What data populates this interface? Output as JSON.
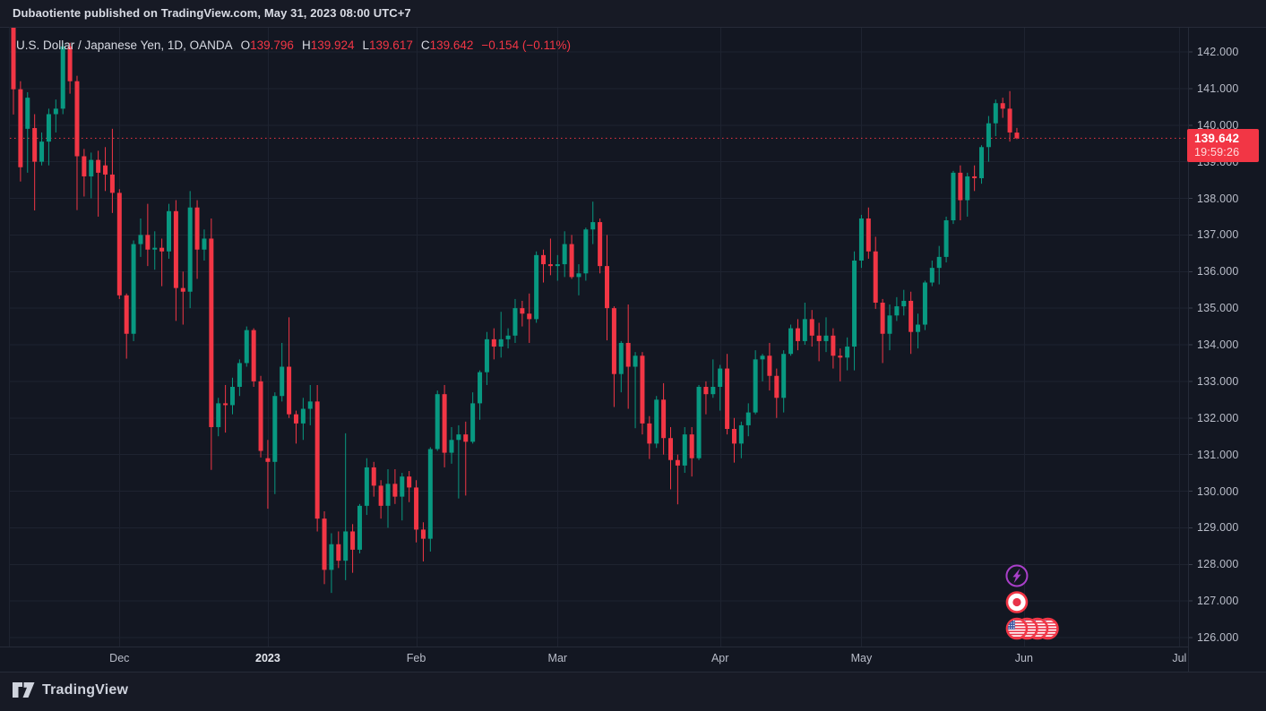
{
  "header": {
    "publish_text": "Dubaotiente published on TradingView.com, May 31, 2023 08:00 UTC+7"
  },
  "legend": {
    "symbol_title": "U.S. Dollar / Japanese Yen, 1D, OANDA",
    "open_key": "O",
    "open": "139.796",
    "high_key": "H",
    "high": "139.924",
    "low_key": "L",
    "low": "139.617",
    "close_key": "C",
    "close": "139.642",
    "change": "−0.154 (−0.11%)"
  },
  "price_scale": {
    "labels": [
      {
        "value": 142,
        "text": "142.000"
      },
      {
        "value": 141,
        "text": "141.000"
      },
      {
        "value": 140,
        "text": "140.000"
      },
      {
        "value": 139,
        "text": "139.000"
      },
      {
        "value": 138,
        "text": "138.000"
      },
      {
        "value": 137,
        "text": "137.000"
      },
      {
        "value": 136,
        "text": "136.000"
      },
      {
        "value": 135,
        "text": "135.000"
      },
      {
        "value": 134,
        "text": "134.000"
      },
      {
        "value": 133,
        "text": "133.000"
      },
      {
        "value": 132,
        "text": "132.000"
      },
      {
        "value": 131,
        "text": "131.000"
      },
      {
        "value": 130,
        "text": "130.000"
      },
      {
        "value": 129,
        "text": "129.000"
      },
      {
        "value": 128,
        "text": "128.000"
      },
      {
        "value": 127,
        "text": "127.000"
      },
      {
        "value": 126,
        "text": "126.000"
      }
    ],
    "last_price": {
      "value": 139.642,
      "text": "139.642",
      "countdown": "19:59:26"
    }
  },
  "time_scale": {
    "ticks": [
      {
        "label": "Dec",
        "index": 15,
        "year": false
      },
      {
        "label": "2023",
        "index": 36,
        "year": true
      },
      {
        "label": "Feb",
        "index": 57,
        "year": false
      },
      {
        "label": "Mar",
        "index": 77,
        "year": false
      },
      {
        "label": "Apr",
        "index": 100,
        "year": false
      },
      {
        "label": "May",
        "index": 120,
        "year": false
      },
      {
        "label": "Jun",
        "index": 143,
        "year": false
      },
      {
        "label": "Jul",
        "index": 165,
        "year": false
      }
    ]
  },
  "footer": {
    "brand": "TradingView"
  },
  "event_markers": {
    "column_index": 142,
    "items": [
      {
        "kind": "lightning",
        "color": "#a93fc9",
        "y": 643
      },
      {
        "kind": "flag-japan",
        "color": "#f23645",
        "y": 672.5
      },
      {
        "kind": "flag-us-group",
        "color": "#f23645",
        "y": 702,
        "count": 4
      }
    ]
  },
  "colors": {
    "up": "#089981",
    "down": "#f23645",
    "grid": "#1e2330",
    "border": "#262b38",
    "pane_bg": "#131722",
    "outer_bg": "#171a25",
    "accent": "#f23645",
    "flag_blue": "#3a55a0",
    "flag_red": "#e8344a"
  },
  "chart_data": {
    "type": "candlestick",
    "title": "U.S. Dollar / Japanese Yen",
    "symbol": "USD/JPY",
    "timeframe": "1D",
    "exchange": "OANDA",
    "ylim": [
      125.8,
      142.7
    ],
    "grid": true,
    "columns": [
      "date",
      "open",
      "high",
      "low",
      "close"
    ],
    "rows": [
      [
        "2022-11-10",
        146.23,
        146.59,
        140.29,
        140.98
      ],
      [
        "2022-11-11",
        140.98,
        141.2,
        138.46,
        138.85
      ],
      [
        "2022-11-14",
        139.9,
        140.9,
        138.7,
        140.75
      ],
      [
        "2022-11-15",
        139.92,
        140.3,
        137.67,
        139.0
      ],
      [
        "2022-11-16",
        139.0,
        139.8,
        138.9,
        139.55
      ],
      [
        "2022-11-17",
        139.55,
        140.45,
        138.9,
        140.3
      ],
      [
        "2022-11-18",
        140.3,
        140.7,
        139.8,
        140.45
      ],
      [
        "2022-11-21",
        140.45,
        142.25,
        140.3,
        142.15
      ],
      [
        "2022-11-22",
        142.15,
        142.25,
        140.86,
        141.2
      ],
      [
        "2022-11-23",
        141.2,
        141.35,
        137.68,
        139.15
      ],
      [
        "2022-11-24",
        139.15,
        139.35,
        138.05,
        138.6
      ],
      [
        "2022-11-25",
        138.6,
        139.25,
        138.0,
        139.05
      ],
      [
        "2022-11-28",
        139.05,
        139.3,
        137.5,
        138.7
      ],
      [
        "2022-11-29",
        138.9,
        139.4,
        138.2,
        138.65
      ],
      [
        "2022-11-30",
        138.65,
        139.9,
        137.6,
        138.15
      ],
      [
        "2022-12-01",
        138.15,
        138.25,
        135.25,
        135.35
      ],
      [
        "2022-12-02",
        135.35,
        135.4,
        133.62,
        134.3
      ],
      [
        "2022-12-05",
        134.3,
        136.85,
        134.1,
        136.75
      ],
      [
        "2022-12-06",
        136.75,
        137.45,
        136.4,
        137.0
      ],
      [
        "2022-12-07",
        137.0,
        137.85,
        136.15,
        136.6
      ],
      [
        "2022-12-08",
        136.6,
        137.1,
        136.05,
        136.65
      ],
      [
        "2022-12-09",
        136.65,
        136.9,
        135.6,
        136.55
      ],
      [
        "2022-12-12",
        136.55,
        137.85,
        136.35,
        137.65
      ],
      [
        "2022-12-13",
        137.65,
        137.95,
        134.65,
        135.55
      ],
      [
        "2022-12-14",
        135.55,
        136.0,
        134.55,
        135.45
      ],
      [
        "2022-12-15",
        135.45,
        138.2,
        135.0,
        137.75
      ],
      [
        "2022-12-16",
        137.75,
        137.95,
        135.8,
        136.6
      ],
      [
        "2022-12-19",
        136.6,
        137.15,
        136.3,
        136.9
      ],
      [
        "2022-12-20",
        136.9,
        137.45,
        130.58,
        131.75
      ],
      [
        "2022-12-21",
        131.75,
        132.55,
        131.5,
        132.4
      ],
      [
        "2022-12-22",
        132.4,
        132.9,
        131.6,
        132.35
      ],
      [
        "2022-12-23",
        132.35,
        133.1,
        132.1,
        132.85
      ],
      [
        "2022-12-27",
        132.85,
        133.6,
        132.6,
        133.5
      ],
      [
        "2022-12-28",
        133.5,
        134.5,
        133.4,
        134.4
      ],
      [
        "2022-12-29",
        134.4,
        134.45,
        132.85,
        133.0
      ],
      [
        "2022-12-30",
        133.0,
        133.15,
        130.92,
        131.1
      ],
      [
        "2023-01-03",
        130.9,
        131.4,
        129.52,
        130.8
      ],
      [
        "2023-01-04",
        130.8,
        132.7,
        129.92,
        132.6
      ],
      [
        "2023-01-05",
        132.6,
        134.05,
        132.45,
        133.4
      ],
      [
        "2023-01-06",
        133.4,
        134.75,
        132.0,
        132.1
      ],
      [
        "2023-01-09",
        132.1,
        132.2,
        131.3,
        131.85
      ],
      [
        "2023-01-10",
        131.85,
        132.55,
        131.4,
        132.25
      ],
      [
        "2023-01-11",
        132.25,
        132.9,
        131.8,
        132.45
      ],
      [
        "2023-01-12",
        132.45,
        132.9,
        128.9,
        129.25
      ],
      [
        "2023-01-13",
        129.25,
        129.45,
        127.46,
        127.85
      ],
      [
        "2023-01-16",
        127.85,
        128.85,
        127.22,
        128.55
      ],
      [
        "2023-01-17",
        128.55,
        128.9,
        127.9,
        128.1
      ],
      [
        "2023-01-18",
        128.1,
        131.58,
        127.57,
        128.9
      ],
      [
        "2023-01-19",
        128.9,
        129.1,
        127.77,
        128.4
      ],
      [
        "2023-01-20",
        128.4,
        129.65,
        128.3,
        129.6
      ],
      [
        "2023-01-23",
        129.6,
        130.9,
        129.35,
        130.65
      ],
      [
        "2023-01-24",
        130.65,
        130.8,
        129.85,
        130.15
      ],
      [
        "2023-01-25",
        130.15,
        130.3,
        129.25,
        129.6
      ],
      [
        "2023-01-26",
        129.6,
        130.6,
        129.0,
        130.2
      ],
      [
        "2023-01-27",
        130.2,
        130.6,
        129.65,
        129.85
      ],
      [
        "2023-01-30",
        129.85,
        130.5,
        129.2,
        130.4
      ],
      [
        "2023-01-31",
        130.4,
        130.55,
        129.7,
        130.1
      ],
      [
        "2023-02-01",
        130.1,
        130.3,
        128.6,
        128.95
      ],
      [
        "2023-02-02",
        128.95,
        129.15,
        128.08,
        128.7
      ],
      [
        "2023-02-03",
        128.7,
        131.2,
        128.35,
        131.15
      ],
      [
        "2023-02-06",
        131.15,
        132.75,
        131.1,
        132.65
      ],
      [
        "2023-02-07",
        132.65,
        132.9,
        130.65,
        131.05
      ],
      [
        "2023-02-08",
        131.05,
        131.75,
        130.75,
        131.4
      ],
      [
        "2023-02-09",
        131.4,
        131.8,
        129.8,
        131.55
      ],
      [
        "2023-02-10",
        131.55,
        131.9,
        129.88,
        131.35
      ],
      [
        "2023-02-13",
        131.35,
        132.7,
        131.3,
        132.4
      ],
      [
        "2023-02-14",
        132.4,
        133.3,
        131.95,
        133.25
      ],
      [
        "2023-02-15",
        133.25,
        134.35,
        132.9,
        134.15
      ],
      [
        "2023-02-16",
        134.15,
        134.45,
        133.6,
        133.95
      ],
      [
        "2023-02-17",
        133.95,
        134.9,
        133.65,
        134.15
      ],
      [
        "2023-02-20",
        134.15,
        134.45,
        133.9,
        134.25
      ],
      [
        "2023-02-21",
        134.25,
        135.25,
        134.05,
        135.0
      ],
      [
        "2023-02-22",
        135.0,
        135.2,
        134.5,
        134.85
      ],
      [
        "2023-02-23",
        134.85,
        135.4,
        134.05,
        134.7
      ],
      [
        "2023-02-24",
        134.7,
        136.55,
        134.6,
        136.45
      ],
      [
        "2023-02-27",
        136.45,
        136.6,
        135.7,
        136.2
      ],
      [
        "2023-02-28",
        136.2,
        136.9,
        135.9,
        136.15
      ],
      [
        "2023-03-01",
        136.15,
        136.45,
        135.75,
        136.2
      ],
      [
        "2023-03-02",
        136.2,
        137.1,
        135.85,
        136.75
      ],
      [
        "2023-03-03",
        136.75,
        137.0,
        135.8,
        135.85
      ],
      [
        "2023-03-06",
        135.85,
        136.2,
        135.35,
        135.95
      ],
      [
        "2023-03-07",
        135.95,
        137.2,
        135.75,
        137.15
      ],
      [
        "2023-03-08",
        137.15,
        137.91,
        136.75,
        137.35
      ],
      [
        "2023-03-09",
        137.35,
        137.45,
        135.95,
        136.15
      ],
      [
        "2023-03-10",
        136.15,
        137.0,
        134.12,
        135.0
      ],
      [
        "2023-03-13",
        135.0,
        135.05,
        132.3,
        133.2
      ],
      [
        "2023-03-14",
        133.2,
        134.1,
        132.7,
        134.05
      ],
      [
        "2023-03-15",
        134.05,
        135.1,
        132.25,
        133.4
      ],
      [
        "2023-03-16",
        133.4,
        133.8,
        131.72,
        133.7
      ],
      [
        "2023-03-17",
        133.7,
        133.8,
        131.55,
        131.85
      ],
      [
        "2023-03-20",
        131.85,
        132.05,
        130.88,
        131.3
      ],
      [
        "2023-03-21",
        131.3,
        132.6,
        131.18,
        132.5
      ],
      [
        "2023-03-22",
        132.5,
        132.95,
        131.0,
        131.45
      ],
      [
        "2023-03-23",
        131.45,
        131.75,
        130.05,
        130.85
      ],
      [
        "2023-03-24",
        130.85,
        131.0,
        129.64,
        130.7
      ],
      [
        "2023-03-27",
        130.7,
        131.75,
        130.5,
        131.55
      ],
      [
        "2023-03-28",
        131.55,
        131.75,
        130.4,
        130.9
      ],
      [
        "2023-03-29",
        130.9,
        132.9,
        130.85,
        132.85
      ],
      [
        "2023-03-30",
        132.85,
        133.0,
        132.1,
        132.65
      ],
      [
        "2023-03-31",
        132.65,
        133.6,
        132.55,
        132.85
      ],
      [
        "2023-04-03",
        132.85,
        133.45,
        132.2,
        133.35
      ],
      [
        "2023-04-04",
        133.35,
        133.75,
        131.55,
        131.7
      ],
      [
        "2023-04-05",
        131.7,
        132.0,
        130.78,
        131.3
      ],
      [
        "2023-04-06",
        131.3,
        131.9,
        130.9,
        131.8
      ],
      [
        "2023-04-07",
        131.8,
        132.4,
        131.5,
        132.15
      ],
      [
        "2023-04-10",
        132.15,
        133.85,
        132.1,
        133.6
      ],
      [
        "2023-04-11",
        133.6,
        133.75,
        133.0,
        133.7
      ],
      [
        "2023-04-12",
        133.7,
        134.05,
        132.75,
        133.15
      ],
      [
        "2023-04-13",
        133.15,
        133.35,
        132.0,
        132.55
      ],
      [
        "2023-04-14",
        132.55,
        133.85,
        132.15,
        133.75
      ],
      [
        "2023-04-17",
        133.75,
        134.55,
        133.7,
        134.45
      ],
      [
        "2023-04-18",
        134.45,
        134.7,
        133.85,
        134.1
      ],
      [
        "2023-04-19",
        134.1,
        135.15,
        134.0,
        134.7
      ],
      [
        "2023-04-20",
        134.7,
        134.95,
        133.95,
        134.25
      ],
      [
        "2023-04-21",
        134.25,
        134.6,
        133.55,
        134.1
      ],
      [
        "2023-04-24",
        134.1,
        134.75,
        133.8,
        134.25
      ],
      [
        "2023-04-25",
        134.25,
        134.45,
        133.35,
        133.7
      ],
      [
        "2023-04-26",
        133.7,
        133.9,
        133.0,
        133.65
      ],
      [
        "2023-04-27",
        133.65,
        134.2,
        133.3,
        133.95
      ],
      [
        "2023-04-28",
        133.95,
        136.55,
        133.3,
        136.3
      ],
      [
        "2023-05-01",
        136.3,
        137.55,
        136.1,
        137.45
      ],
      [
        "2023-05-02",
        137.45,
        137.75,
        136.35,
        136.55
      ],
      [
        "2023-05-03",
        136.55,
        136.95,
        134.98,
        135.15
      ],
      [
        "2023-05-04",
        135.15,
        135.25,
        133.5,
        134.3
      ],
      [
        "2023-05-05",
        134.3,
        135.1,
        133.85,
        134.8
      ],
      [
        "2023-05-08",
        134.8,
        135.3,
        134.65,
        135.05
      ],
      [
        "2023-05-09",
        135.05,
        135.5,
        134.8,
        135.2
      ],
      [
        "2023-05-10",
        135.2,
        135.45,
        133.75,
        134.35
      ],
      [
        "2023-05-11",
        134.35,
        134.85,
        133.9,
        134.55
      ],
      [
        "2023-05-12",
        134.55,
        135.75,
        134.4,
        135.7
      ],
      [
        "2023-05-15",
        135.7,
        136.3,
        135.6,
        136.1
      ],
      [
        "2023-05-16",
        136.1,
        136.7,
        135.65,
        136.4
      ],
      [
        "2023-05-17",
        136.4,
        137.5,
        136.25,
        137.4
      ],
      [
        "2023-05-18",
        137.4,
        138.75,
        137.3,
        138.7
      ],
      [
        "2023-05-19",
        138.7,
        138.9,
        137.4,
        137.95
      ],
      [
        "2023-05-22",
        137.95,
        138.7,
        137.5,
        138.6
      ],
      [
        "2023-05-23",
        138.6,
        138.9,
        138.2,
        138.55
      ],
      [
        "2023-05-24",
        138.55,
        139.45,
        138.4,
        139.4
      ],
      [
        "2023-05-25",
        139.4,
        140.25,
        139.0,
        140.05
      ],
      [
        "2023-05-26",
        140.05,
        140.7,
        139.7,
        140.6
      ],
      [
        "2023-05-29",
        140.6,
        140.75,
        140.2,
        140.45
      ],
      [
        "2023-05-30",
        140.45,
        140.93,
        139.55,
        139.8
      ],
      [
        "2023-05-31",
        139.796,
        139.924,
        139.617,
        139.642
      ]
    ]
  }
}
